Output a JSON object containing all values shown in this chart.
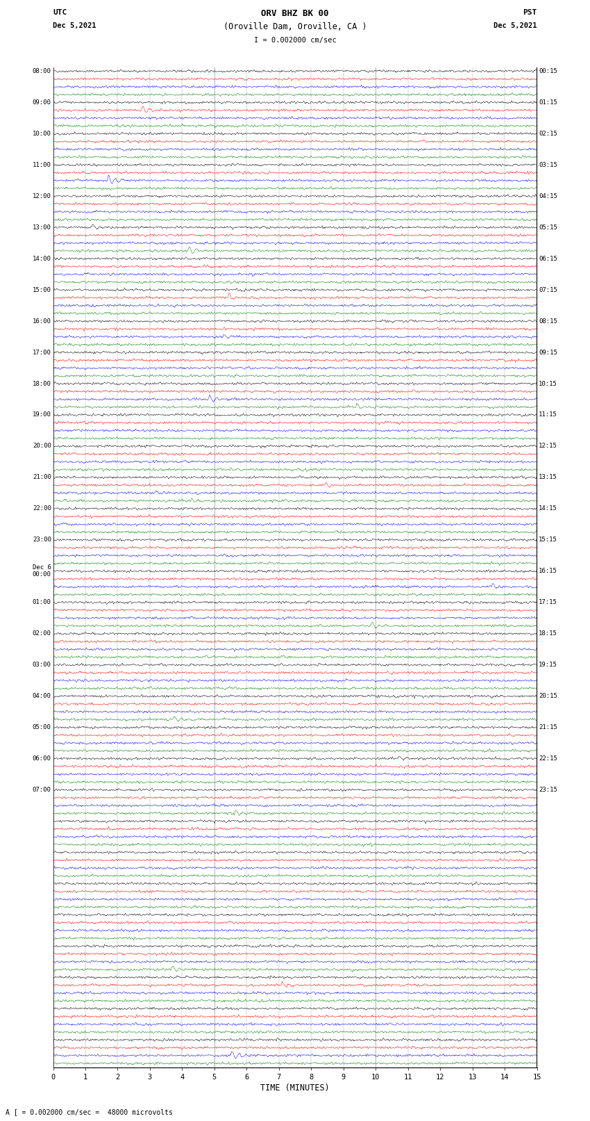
{
  "title_line1": "ORV BHZ BK 00",
  "title_line2": "(Oroville Dam, Oroville, CA )",
  "scale_text": "I = 0.002000 cm/sec",
  "bottom_text": "A [ = 0.002000 cm/sec =  48000 microvolts",
  "left_label": "UTC",
  "left_date": "Dec 5,2021",
  "right_label": "PST",
  "right_date": "Dec 5,2021",
  "xlabel": "TIME (MINUTES)",
  "total_rows": 32,
  "traces_per_row": 4,
  "minutes_per_row": 15,
  "colors": [
    "black",
    "red",
    "blue",
    "green"
  ],
  "background_color": "white",
  "noise_amplitude": 0.12,
  "fig_width": 8.5,
  "fig_height": 16.13,
  "dpi": 100,
  "left_time_labels": [
    "08:00",
    "09:00",
    "10:00",
    "11:00",
    "12:00",
    "13:00",
    "14:00",
    "15:00",
    "16:00",
    "17:00",
    "18:00",
    "19:00",
    "20:00",
    "21:00",
    "22:00",
    "23:00",
    "Dec 6\n00:00",
    "01:00",
    "02:00",
    "03:00",
    "04:00",
    "05:00",
    "06:00",
    "07:00",
    "",
    "",
    "",
    "",
    "",
    "",
    "",
    ""
  ],
  "right_time_labels": [
    "00:15",
    "01:15",
    "02:15",
    "03:15",
    "04:15",
    "05:15",
    "06:15",
    "07:15",
    "08:15",
    "09:15",
    "10:15",
    "11:15",
    "12:15",
    "13:15",
    "14:15",
    "15:15",
    "16:15",
    "17:15",
    "18:15",
    "19:15",
    "20:15",
    "21:15",
    "22:15",
    "23:15",
    "",
    "",
    "",
    "",
    "",
    "",
    "",
    ""
  ]
}
